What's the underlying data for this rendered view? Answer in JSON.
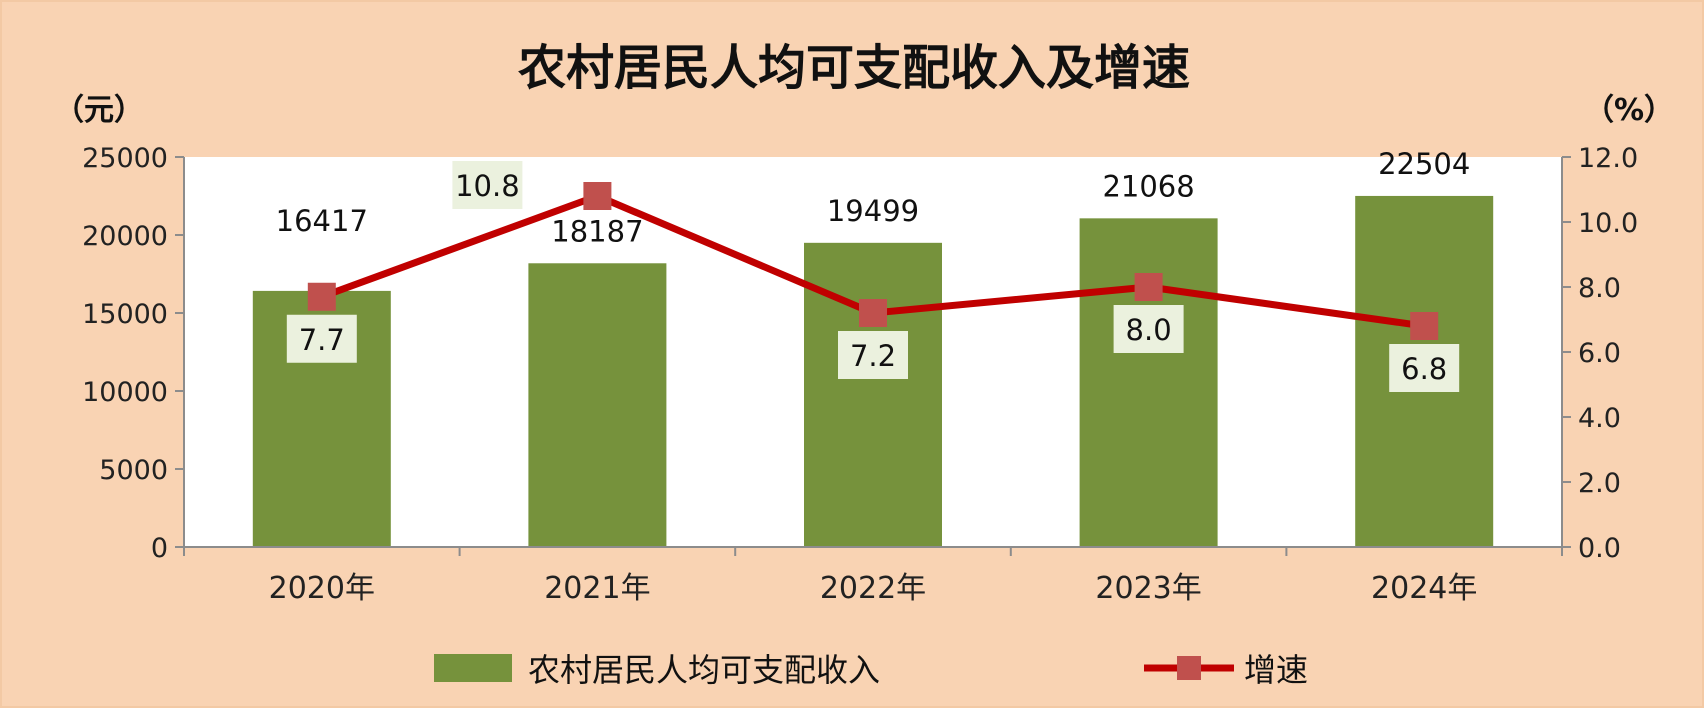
{
  "chart_data": {
    "type": "bar",
    "title": "农村居民人均可支配收入及增速",
    "left_unit": "（元）",
    "right_unit": "（%）",
    "categories": [
      "2020年",
      "2021年",
      "2022年",
      "2023年",
      "2024年"
    ],
    "left_axis": {
      "min": 0,
      "max": 25000,
      "ticks": [
        "0",
        "5000",
        "10000",
        "15000",
        "20000",
        "25000"
      ]
    },
    "right_axis": {
      "min": 0,
      "max": 12,
      "ticks": [
        "0.0",
        "2.0",
        "4.0",
        "6.0",
        "8.0",
        "10.0",
        "12.0"
      ]
    },
    "series": [
      {
        "name": "农村居民人均可支配收入",
        "type": "bar",
        "axis": "left",
        "values": [
          16417,
          18187,
          19499,
          21068,
          22504
        ],
        "labels": [
          "16417",
          "18187",
          "19499",
          "21068",
          "22504"
        ],
        "color": "#76923c"
      },
      {
        "name": "增速",
        "type": "line",
        "axis": "right",
        "values": [
          7.7,
          10.8,
          7.2,
          8.0,
          6.8
        ],
        "labels": [
          "7.7",
          "10.8",
          "7.2",
          "8.0",
          "6.8"
        ],
        "color": "#c00000",
        "marker_color": "#c0504d"
      }
    ],
    "legend_position": "bottom",
    "plot_background": "#ffffff",
    "page_background": "#f9d3b3",
    "rate_label_background": "#ebf1de"
  }
}
